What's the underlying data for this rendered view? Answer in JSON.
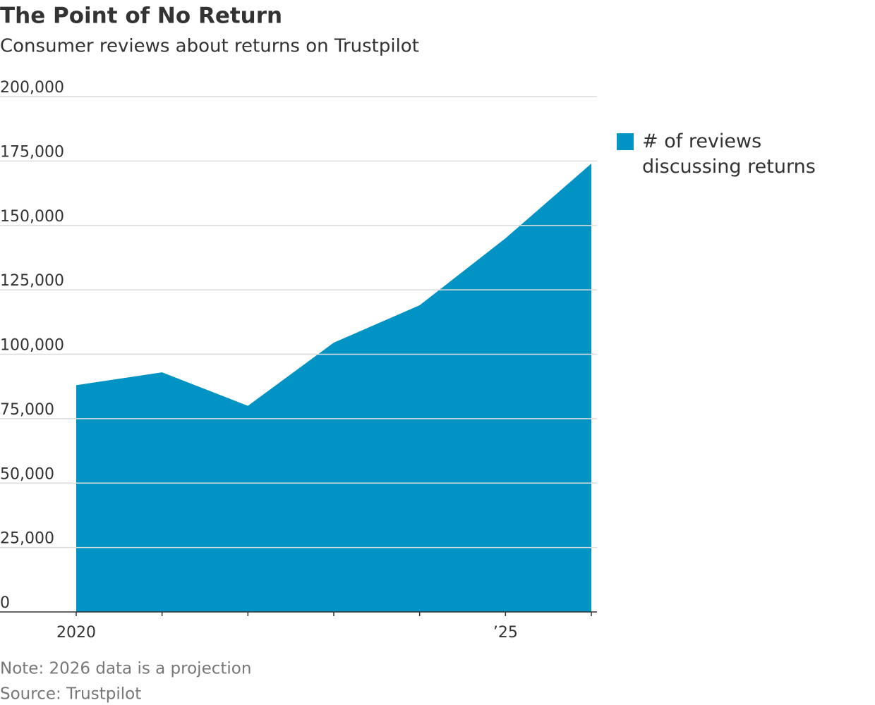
{
  "chart_data": {
    "type": "area",
    "title": "The Point of No Return",
    "subtitle": "Consumer reviews about returns on Trustpilot",
    "categories": [
      "2020",
      null,
      null,
      null,
      null,
      "’25",
      null
    ],
    "series": [
      {
        "name": "# of reviews discussing returns",
        "color": "#0093c4",
        "values": [
          88000,
          93000,
          80000,
          104500,
          119000,
          145000,
          174000
        ]
      }
    ],
    "ylim": [
      0,
      200000
    ],
    "yticks": [
      0,
      {
        "value": 25000,
        "label": "25,000"
      },
      {
        "value": 50000,
        "label": "50,000"
      },
      {
        "value": 75000,
        "label": "75,000"
      },
      {
        "value": 100000,
        "label": "100,000"
      },
      {
        "value": 125000,
        "label": "125,000"
      },
      {
        "value": 150000,
        "label": "150,000"
      },
      {
        "value": 175000,
        "label": "175,000"
      },
      {
        "value": 200000,
        "label": "200,000"
      }
    ],
    "grid": true,
    "legend": "right",
    "note": "Note: 2026 data is a projection",
    "source": "Source: Trustpilot"
  }
}
